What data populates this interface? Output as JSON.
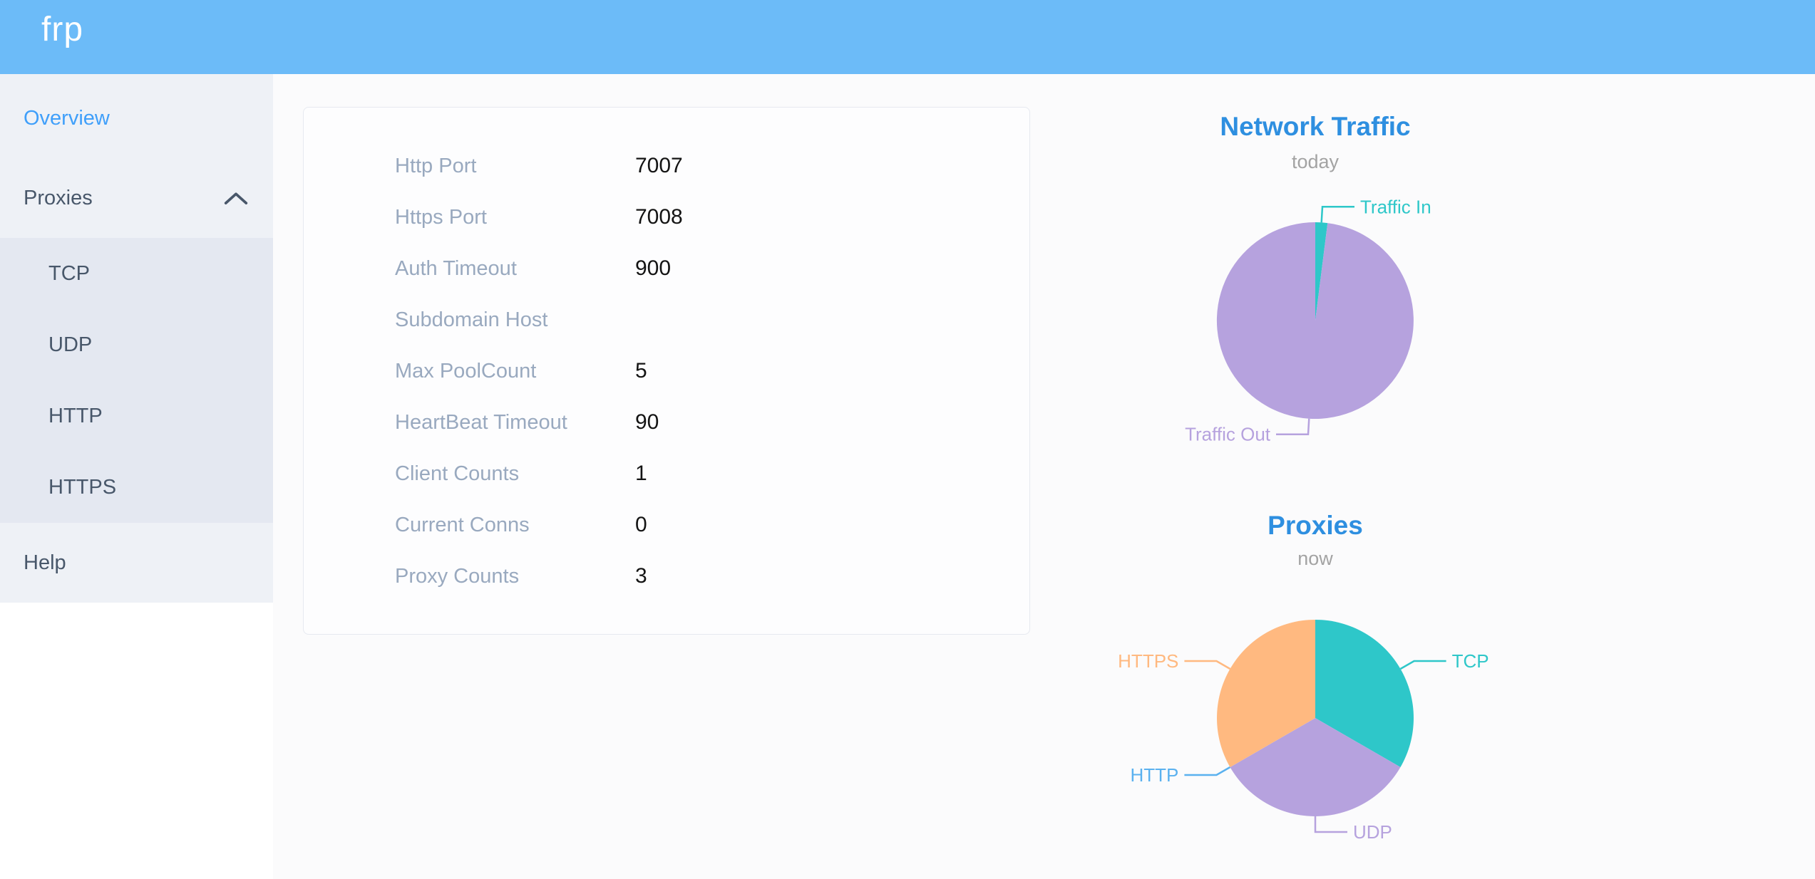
{
  "header": {
    "logo": "frp"
  },
  "sidebar": {
    "items": [
      {
        "label": "Overview",
        "active": true
      },
      {
        "label": "Proxies",
        "expanded": true
      }
    ],
    "submenu_items": [
      "TCP",
      "UDP",
      "HTTP",
      "HTTPS"
    ],
    "help_label": "Help"
  },
  "server_info": {
    "rows": [
      {
        "label": "Http Port",
        "value": "7007"
      },
      {
        "label": "Https Port",
        "value": "7008"
      },
      {
        "label": "Auth Timeout",
        "value": "900"
      },
      {
        "label": "Subdomain Host",
        "value": ""
      },
      {
        "label": "Max PoolCount",
        "value": "5"
      },
      {
        "label": "HeartBeat Timeout",
        "value": "90"
      },
      {
        "label": "Client Counts",
        "value": "1"
      },
      {
        "label": "Current Conns",
        "value": "0"
      },
      {
        "label": "Proxy Counts",
        "value": "3"
      }
    ]
  },
  "chart_data": [
    {
      "type": "pie",
      "title": "Network Traffic",
      "subtitle": "today",
      "label_position": "outside",
      "legend_position": "none",
      "series": [
        {
          "name": "Traffic In",
          "value": 2,
          "color": "#2ec7c9"
        },
        {
          "name": "Traffic Out",
          "value": 98,
          "color": "#b6a2de"
        }
      ]
    },
    {
      "type": "pie",
      "title": "Proxies",
      "subtitle": "now",
      "label_position": "outside",
      "legend_position": "none",
      "series": [
        {
          "name": "TCP",
          "value": 1,
          "color": "#2ec7c9"
        },
        {
          "name": "UDP",
          "value": 1,
          "color": "#b6a2de"
        },
        {
          "name": "HTTP",
          "value": 0,
          "color": "#5ab1ef"
        },
        {
          "name": "HTTPS",
          "value": 1,
          "color": "#ffb980"
        }
      ]
    }
  ],
  "colors": {
    "header_background": "#6cbbf8",
    "sidebar_background": "#eef1f6",
    "submenu_background": "#e4e8f1",
    "menu_text": "#48576a",
    "active_menu_item": "#3f9ffa",
    "chart_title": "#2e8fe0",
    "info_label": "#99a9bf",
    "info_value": "#141414"
  }
}
